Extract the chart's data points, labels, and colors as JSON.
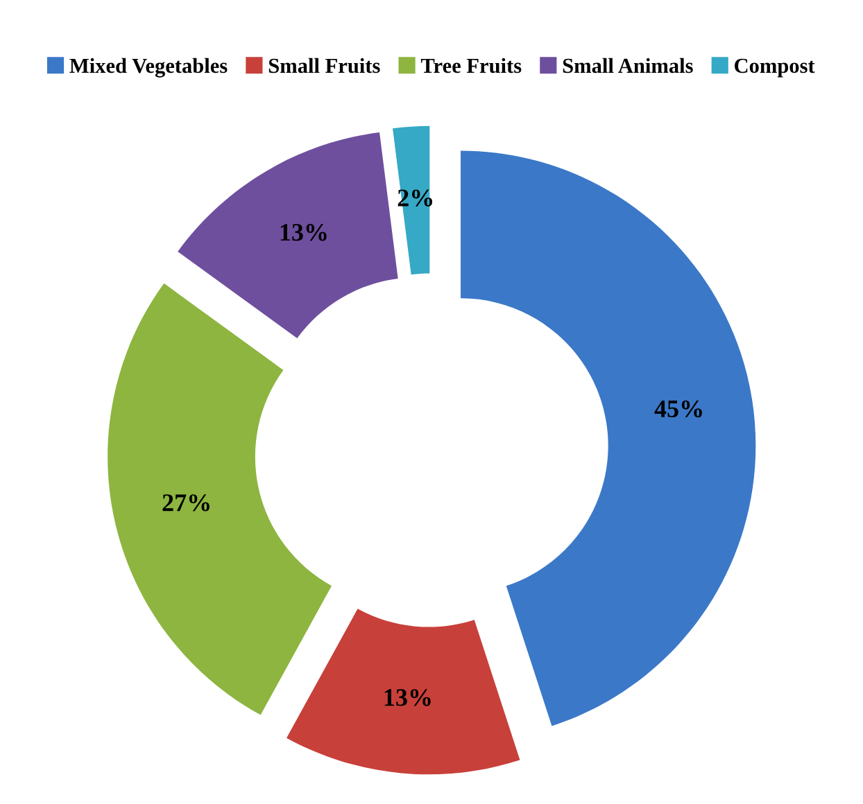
{
  "chart_data": {
    "type": "donut",
    "categories": [
      "Mixed Vegetables",
      "Small Fruits",
      "Tree Fruits",
      "Small Animals",
      "Compost"
    ],
    "values": [
      45,
      13,
      27,
      13,
      2
    ],
    "colors": [
      "#3b78c8",
      "#c8403a",
      "#8db540",
      "#6e4f9e",
      "#35a9c6"
    ],
    "value_labels": [
      "45%",
      "13%",
      "27%",
      "13%",
      "2%"
    ],
    "legend": "top"
  }
}
